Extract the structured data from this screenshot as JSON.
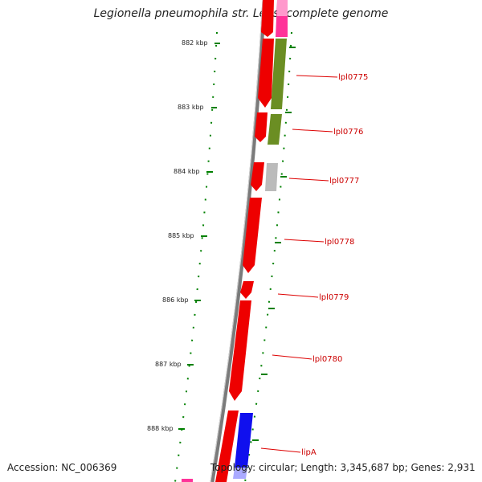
{
  "title": "Legionella pneumophila str. Lens, complete genome",
  "accession": "Accession: NC_006369",
  "topology": "Topology: circular; Length: 3,345,687 bp; Genes: 2,931",
  "scale_labels": [
    "882 kbp",
    "883 kbp",
    "884 kbp",
    "885 kbp",
    "886 kbp",
    "887 kbp",
    "888 kbp"
  ],
  "gene_labels": [
    "lpl0775",
    "lpl0776",
    "lpl0777",
    "lpl0778",
    "lpl0779",
    "lpl0780",
    "lipA"
  ],
  "colors": {
    "forward_gene": "#ee0000",
    "cog_olive": "#6b8e23",
    "cog_gray": "#bbbbbb",
    "cog_blue": "#1010ee",
    "cog_pink": "#ff3399",
    "backbone": "#808080",
    "tick": "#008000",
    "label": "#cc0000"
  }
}
